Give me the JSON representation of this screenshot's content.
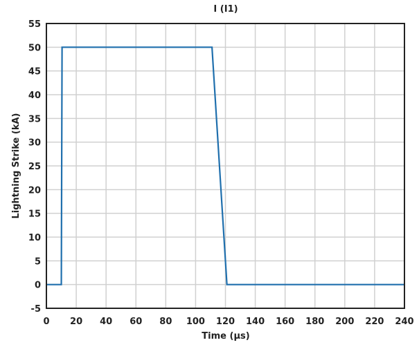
{
  "chart_data": {
    "type": "line",
    "title": "I (I1)",
    "xlabel": "Time (µs)",
    "ylabel": "Lightning Strike (kA)",
    "xlim": [
      0,
      240
    ],
    "ylim": [
      -5,
      55
    ],
    "xticks": [
      0,
      20,
      40,
      60,
      80,
      100,
      120,
      140,
      160,
      180,
      200,
      220,
      240
    ],
    "yticks": [
      -5,
      0,
      5,
      10,
      15,
      20,
      25,
      30,
      35,
      40,
      45,
      50,
      55
    ],
    "grid": true,
    "series": [
      {
        "color": "#1f6fad",
        "x": [
          0,
          10,
          10.5,
          111,
          121,
          240
        ],
        "y": [
          0,
          0,
          50,
          50,
          0,
          0
        ]
      }
    ]
  }
}
